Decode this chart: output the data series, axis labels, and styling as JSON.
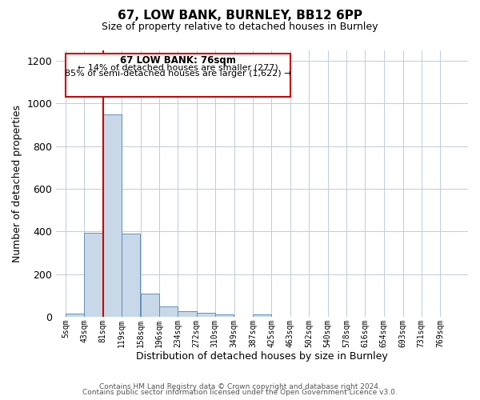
{
  "title": "67, LOW BANK, BURNLEY, BB12 6PP",
  "subtitle": "Size of property relative to detached houses in Burnley",
  "xlabel": "Distribution of detached houses by size in Burnley",
  "ylabel": "Number of detached properties",
  "footer_lines": [
    "Contains HM Land Registry data © Crown copyright and database right 2024.",
    "Contains public sector information licensed under the Open Government Licence v3.0."
  ],
  "bin_labels": [
    "5sqm",
    "43sqm",
    "81sqm",
    "119sqm",
    "158sqm",
    "196sqm",
    "234sqm",
    "272sqm",
    "310sqm",
    "349sqm",
    "387sqm",
    "425sqm",
    "463sqm",
    "502sqm",
    "540sqm",
    "578sqm",
    "616sqm",
    "654sqm",
    "693sqm",
    "731sqm",
    "769sqm"
  ],
  "bar_values": [
    15,
    395,
    950,
    390,
    108,
    50,
    25,
    18,
    12,
    0,
    12,
    0,
    0,
    0,
    0,
    0,
    0,
    0,
    0,
    0,
    0
  ],
  "bar_color": "#c8d8e8",
  "bar_edge_color": "#6090b8",
  "bin_edges": [
    5,
    43,
    81,
    119,
    158,
    196,
    234,
    272,
    310,
    349,
    387,
    425,
    463,
    502,
    540,
    578,
    616,
    654,
    693,
    731,
    769
  ],
  "annotation_title": "67 LOW BANK: 76sqm",
  "annotation_line1": "← 14% of detached houses are smaller (277)",
  "annotation_line2": "85% of semi-detached houses are larger (1,622) →",
  "vline_color": "#cc0000",
  "annotation_box_color": "#ffffff",
  "annotation_box_edge": "#cc0000",
  "ylim": [
    0,
    1250
  ],
  "yticks": [
    0,
    200,
    400,
    600,
    800,
    1000,
    1200
  ],
  "background_color": "#ffffff",
  "grid_color": "#c0ccd8"
}
